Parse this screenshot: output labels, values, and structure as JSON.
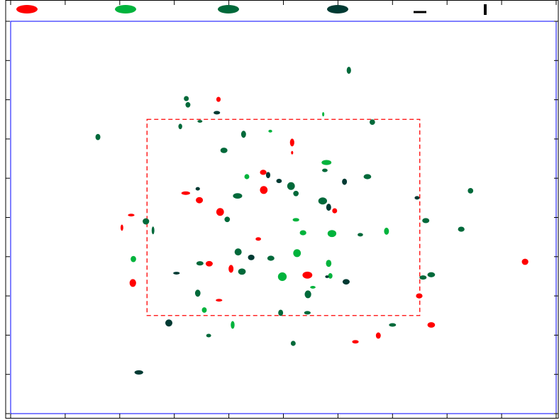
{
  "chart_data": {
    "type": "scatter",
    "xlim": [
      0,
      10
    ],
    "ylim": [
      0,
      10
    ],
    "xticks": [
      0,
      1,
      2,
      3,
      4,
      5,
      6,
      7,
      8,
      9,
      10
    ],
    "yticks": [
      0,
      1,
      2,
      3,
      4,
      5,
      6,
      7,
      8,
      9,
      10
    ],
    "box": {
      "x": [
        2.5,
        7.5
      ],
      "y": [
        2.5,
        7.5
      ],
      "color": "#ff0000"
    },
    "series": [
      {
        "color": "#ff0000",
        "x": [
          3.81,
          5.16,
          5.16,
          4.63,
          3.21,
          4.64,
          3.46,
          5.94,
          3.84,
          2.21,
          2.04,
          4.54,
          3.64,
          4.04,
          9.43,
          5.44,
          2.24,
          7.49,
          3.82,
          7.71,
          6.74,
          6.32
        ],
        "values": [
          8.01,
          6.91,
          6.65,
          6.15,
          5.62,
          5.7,
          5.44,
          5.17,
          5.14,
          5.06,
          4.74,
          4.45,
          3.82,
          3.69,
          3.87,
          3.53,
          3.33,
          3.0,
          2.89,
          2.26,
          1.99,
          1.83
        ],
        "width": [
          0.08,
          0.08,
          0.04,
          0.12,
          0.16,
          0.14,
          0.13,
          0.09,
          0.14,
          0.12,
          0.05,
          0.1,
          0.13,
          0.09,
          0.12,
          0.18,
          0.12,
          0.12,
          0.12,
          0.14,
          0.09,
          0.12
        ],
        "height": [
          0.13,
          0.2,
          0.09,
          0.13,
          0.09,
          0.2,
          0.16,
          0.13,
          0.2,
          0.07,
          0.16,
          0.09,
          0.14,
          0.2,
          0.16,
          0.18,
          0.2,
          0.13,
          0.07,
          0.14,
          0.16,
          0.09
        ]
      },
      {
        "color": "#00b33c",
        "x": [
          5.73,
          4.76,
          5.79,
          4.33,
          5.23,
          5.36,
          5.89,
          6.89,
          5.25,
          2.25,
          5.83,
          4.98,
          5.86,
          5.54,
          3.55,
          4.07
        ],
        "values": [
          7.63,
          7.2,
          6.4,
          6.04,
          4.94,
          4.61,
          4.59,
          4.65,
          4.09,
          3.94,
          3.83,
          3.49,
          3.51,
          3.22,
          2.64,
          2.26
        ],
        "width": [
          0.04,
          0.07,
          0.18,
          0.09,
          0.12,
          0.12,
          0.16,
          0.09,
          0.14,
          0.1,
          0.1,
          0.16,
          0.08,
          0.1,
          0.09,
          0.07
        ],
        "height": [
          0.11,
          0.07,
          0.13,
          0.13,
          0.09,
          0.13,
          0.18,
          0.18,
          0.2,
          0.16,
          0.18,
          0.22,
          0.14,
          0.07,
          0.14,
          0.2
        ]
      },
      {
        "color": "#00693a",
        "x": [
          6.2,
          3.22,
          3.25,
          1.6,
          3.11,
          3.47,
          4.27,
          6.63,
          3.91,
          5.76,
          6.54,
          5.14,
          4.16,
          5.23,
          8.43,
          5.72,
          2.48,
          2.61,
          3.97,
          7.61,
          6.41,
          8.26,
          4.17,
          4.77,
          3.47,
          4.24,
          7.56,
          7.71,
          3.43,
          5.45,
          4.95,
          5.44,
          7.0,
          3.63,
          5.18
        ],
        "values": [
          8.75,
          8.03,
          7.87,
          7.05,
          7.32,
          7.45,
          7.12,
          7.43,
          6.71,
          6.2,
          6.04,
          5.8,
          5.55,
          5.61,
          5.68,
          5.42,
          4.9,
          4.67,
          4.95,
          4.92,
          4.56,
          4.7,
          4.12,
          3.96,
          3.83,
          3.62,
          3.47,
          3.54,
          3.07,
          3.04,
          2.57,
          2.57,
          2.26,
          1.99,
          1.79
        ],
        "width": [
          0.08,
          0.09,
          0.09,
          0.09,
          0.07,
          0.09,
          0.09,
          0.1,
          0.13,
          0.1,
          0.14,
          0.14,
          0.17,
          0.1,
          0.1,
          0.16,
          0.12,
          0.05,
          0.1,
          0.13,
          0.1,
          0.12,
          0.13,
          0.13,
          0.13,
          0.14,
          0.13,
          0.14,
          0.1,
          0.12,
          0.09,
          0.12,
          0.13,
          0.09,
          0.09
        ],
        "height": [
          0.18,
          0.13,
          0.14,
          0.16,
          0.14,
          0.07,
          0.18,
          0.14,
          0.14,
          0.09,
          0.13,
          0.2,
          0.14,
          0.14,
          0.14,
          0.18,
          0.16,
          0.2,
          0.14,
          0.13,
          0.09,
          0.13,
          0.18,
          0.13,
          0.11,
          0.16,
          0.11,
          0.13,
          0.18,
          0.2,
          0.16,
          0.09,
          0.09,
          0.09,
          0.13
        ]
      },
      {
        "color": "#003a33",
        "x": [
          3.78,
          4.72,
          4.92,
          6.12,
          3.43,
          7.45,
          5.83,
          4.41,
          3.04,
          5.8,
          6.15,
          2.9,
          2.35
        ],
        "values": [
          7.67,
          6.08,
          5.93,
          5.91,
          5.73,
          5.5,
          5.26,
          3.98,
          3.58,
          3.49,
          3.36,
          2.31,
          1.05
        ],
        "width": [
          0.12,
          0.08,
          0.1,
          0.09,
          0.08,
          0.09,
          0.09,
          0.12,
          0.12,
          0.07,
          0.13,
          0.13,
          0.16
        ],
        "height": [
          0.09,
          0.16,
          0.11,
          0.16,
          0.09,
          0.09,
          0.18,
          0.14,
          0.07,
          0.07,
          0.14,
          0.18,
          0.11
        ]
      }
    ]
  }
}
